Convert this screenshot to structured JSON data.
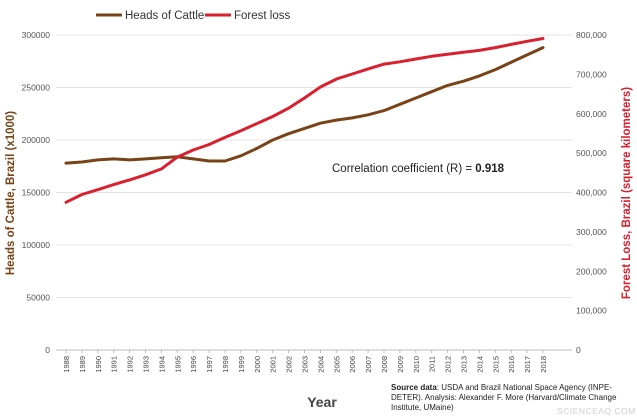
{
  "chart_data": {
    "type": "line",
    "title": "",
    "xlabel": "Year",
    "ylabel_left": "Heads of Cattle, Brazil (x1000)",
    "ylabel_right": "Forest Loss, Brazil (square kilometers)",
    "ylim_left": [
      0,
      300000
    ],
    "ylim_right": [
      0,
      800000
    ],
    "yticks_left": [
      "0",
      "50000",
      "100000",
      "150000",
      "200000",
      "250000",
      "300000"
    ],
    "yticks_right": [
      "0",
      "100,000",
      "200,000",
      "300,000",
      "400,000",
      "500,000",
      "600,000",
      "700,000",
      "800,000"
    ],
    "grid": true,
    "legend": "top-left",
    "x": [
      "1988",
      "1989",
      "1990",
      "1991",
      "1992",
      "1993",
      "1994",
      "1995",
      "1996",
      "1997",
      "1998",
      "1999",
      "2000",
      "2001",
      "2002",
      "2003",
      "2004",
      "2005",
      "2006",
      "2007",
      "2008",
      "2009",
      "2010",
      "2011",
      "2012",
      "2013",
      "2014",
      "2015",
      "2016",
      "2017",
      "2018"
    ],
    "series": [
      {
        "name": "Heads of Cattle",
        "axis": "left",
        "color": "#7a4317",
        "values": [
          178000,
          179000,
          181000,
          182000,
          181000,
          182000,
          183000,
          184000,
          182000,
          180000,
          180000,
          185000,
          192000,
          200000,
          206000,
          211000,
          216000,
          219000,
          221000,
          224000,
          228000,
          234000,
          240000,
          246000,
          252000,
          256000,
          261000,
          267000,
          274000,
          281000,
          288000
        ]
      },
      {
        "name": "Forest loss",
        "axis": "right",
        "color": "#d8202e",
        "values": [
          375000,
          395000,
          407000,
          420000,
          432000,
          445000,
          460000,
          490000,
          508000,
          522000,
          540000,
          557000,
          575000,
          593000,
          614000,
          640000,
          668000,
          688000,
          701000,
          714000,
          726000,
          732000,
          739000,
          746000,
          751000,
          756000,
          761000,
          768000,
          776000,
          784000,
          791000
        ]
      }
    ],
    "annotation": {
      "prefix": "Correlation coefficient (R) = ",
      "value": "0.918"
    }
  },
  "source_note": {
    "label": "Source data",
    "text": ": USDA and Brazil National Space Agency (INPE-DETER). Analysis: Alexander F. More (Harvard/Climate Change Institute, UMaine)"
  },
  "watermark": "SCIENCEAQ.COM"
}
